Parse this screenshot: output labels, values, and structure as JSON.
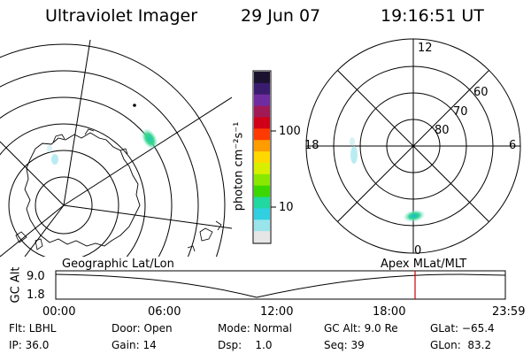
{
  "header": {
    "instrument": "Ultraviolet Imager",
    "date": "29 Jun 07",
    "time": "19:16:51 UT"
  },
  "colorbar": {
    "unit_label": "photon cm⁻²s⁻¹",
    "tick_100": "100",
    "tick_10": "10",
    "colors": [
      "#1b1230",
      "#3a1c6e",
      "#6f2ca0",
      "#a01a55",
      "#d00018",
      "#ff3a00",
      "#ff9c00",
      "#ffd800",
      "#d8f000",
      "#8ae800",
      "#3ad800",
      "#20d8a0",
      "#30d0e0",
      "#9ae4ec",
      "#e6e6e6"
    ]
  },
  "polar_plot": {
    "mlt_12": "12",
    "mlt_18": "18",
    "mlt_6": "6",
    "mlt_0": "0",
    "lat_60": "60",
    "lat_70": "70",
    "lat_80": "80"
  },
  "map_labels": {
    "left": "Geographic Lat/Lon",
    "right": "Apex MLat/MLT"
  },
  "timeline": {
    "ylabel": "GC Alt",
    "y_top": "9.0",
    "y_bottom": "1.8",
    "ticks": [
      "00:00",
      "06:00",
      "12:00",
      "18:00",
      "23:59"
    ],
    "marker_color": "#d00000"
  },
  "status": {
    "flt": "Flt: LBHL",
    "ip": "IP: 36.0",
    "door": "Door: Open",
    "gain": "Gain: 14",
    "mode": "Mode: Normal",
    "dsp": "Dsp:    1.0",
    "gc_alt": "GC Alt: 9.0 Re",
    "seq": "Seq: 39",
    "glat": "GLat: −65.4",
    "glon": "GLon:  83.2"
  }
}
